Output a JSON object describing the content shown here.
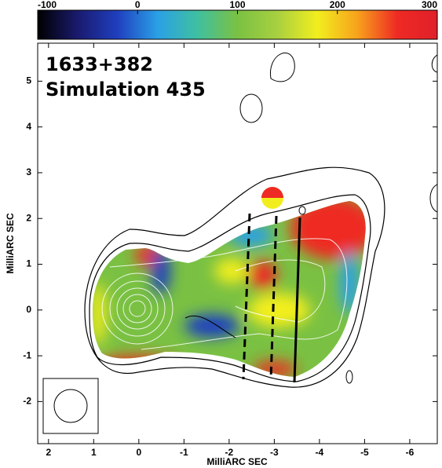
{
  "chart_data": {
    "type": "image",
    "annotations": [
      "1633+382",
      "Simulation 435"
    ],
    "xlabel": "MilliARC SEC",
    "ylabel": "MilliARC SEC",
    "xlim": [
      2.24,
      -6.61
    ],
    "ylim": [
      -2.92,
      5.83
    ],
    "xticks": [
      2,
      1,
      0,
      -1,
      -2,
      -3,
      -4,
      -5,
      -6
    ],
    "yticks": [
      -2,
      -1,
      0,
      1,
      2,
      3,
      4,
      5
    ],
    "colorbar": {
      "clim": [
        -100,
        300
      ],
      "ticks": [
        -100,
        0,
        100,
        200,
        300
      ],
      "colormap": [
        "#000000",
        "#1a1a6e",
        "#1f3fbf",
        "#2aa0e6",
        "#3fc0a0",
        "#7ac143",
        "#a8d040",
        "#f2ee1e",
        "#f7a21c",
        "#ee2a24",
        "#e0202a"
      ]
    }
  }
}
